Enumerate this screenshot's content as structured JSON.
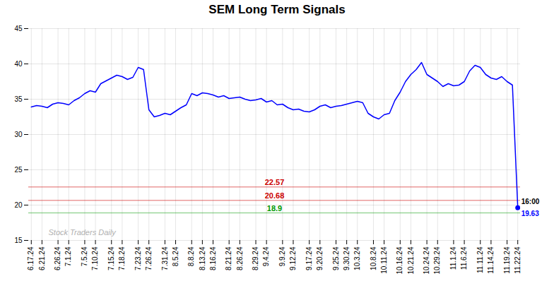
{
  "chart_data": {
    "type": "line",
    "title": "SEM Long Term Signals",
    "categories": [
      "6.17.24",
      null,
      "6.21.24",
      null,
      null,
      "6.26.24",
      null,
      "7.1.24",
      null,
      null,
      "7.5.24",
      null,
      "7.10.24",
      null,
      null,
      "7.15.24",
      null,
      "7.18.24",
      null,
      null,
      "7.23.24",
      null,
      "7.26.24",
      null,
      null,
      "7.31.24",
      null,
      "8.5.24",
      null,
      null,
      "8.8.24",
      null,
      "8.13.24",
      null,
      "8.16.24",
      null,
      null,
      "8.21.24",
      null,
      "8.26.24",
      null,
      null,
      "8.29.24",
      null,
      "9.4.24",
      null,
      null,
      "9.9.24",
      null,
      "9.12.24",
      null,
      null,
      "9.17.24",
      null,
      "9.20.24",
      null,
      null,
      "9.25.24",
      null,
      "9.30.24",
      null,
      "10.3.24",
      null,
      null,
      "10.8.24",
      null,
      "10.11.24",
      null,
      null,
      "10.16.24",
      null,
      "10.21.24",
      null,
      null,
      "10.24.24",
      null,
      "10.29.24",
      null,
      null,
      "11.1.24",
      null,
      "11.6.24",
      null,
      null,
      "11.11.24",
      null,
      "11.14.24",
      null,
      null,
      "11.19.24",
      null,
      "11.22.24"
    ],
    "values": [
      33.9,
      34.1,
      34.0,
      33.8,
      34.3,
      34.5,
      34.4,
      34.2,
      34.8,
      35.2,
      35.8,
      36.2,
      36.0,
      37.2,
      37.6,
      38.0,
      38.4,
      38.2,
      37.8,
      38.1,
      39.5,
      39.2,
      33.5,
      32.5,
      32.7,
      33.0,
      32.8,
      33.3,
      33.8,
      34.2,
      35.8,
      35.5,
      35.9,
      35.8,
      35.6,
      35.3,
      35.5,
      35.1,
      35.2,
      35.3,
      35.0,
      34.8,
      34.9,
      35.1,
      34.6,
      34.8,
      34.2,
      34.3,
      33.8,
      33.5,
      33.6,
      33.3,
      33.2,
      33.5,
      34.0,
      34.2,
      33.8,
      34.0,
      34.1,
      34.3,
      34.5,
      34.7,
      34.5,
      33.0,
      32.5,
      32.2,
      32.8,
      33.0,
      34.8,
      36.0,
      37.5,
      38.5,
      39.2,
      40.2,
      38.5,
      38.0,
      37.5,
      36.8,
      37.2,
      36.9,
      37.0,
      37.5,
      39.0,
      39.8,
      39.5,
      38.5,
      38.0,
      37.8,
      38.2,
      37.5,
      37.0,
      19.63
    ],
    "color": "blue",
    "ylim": [
      15,
      45
    ],
    "yticks": [
      15,
      20,
      25,
      30,
      35,
      40,
      45
    ],
    "grid": true,
    "reference_lines": [
      {
        "value": 22.57,
        "label": "22.57",
        "color": "#cc0000"
      },
      {
        "value": 20.68,
        "label": "20.68",
        "color": "#cc0000"
      },
      {
        "value": 18.9,
        "label": "18.9",
        "color": "#009900"
      }
    ],
    "end_labels": [
      "16:00",
      "19.63"
    ],
    "watermark": "Stock Traders Daily"
  }
}
